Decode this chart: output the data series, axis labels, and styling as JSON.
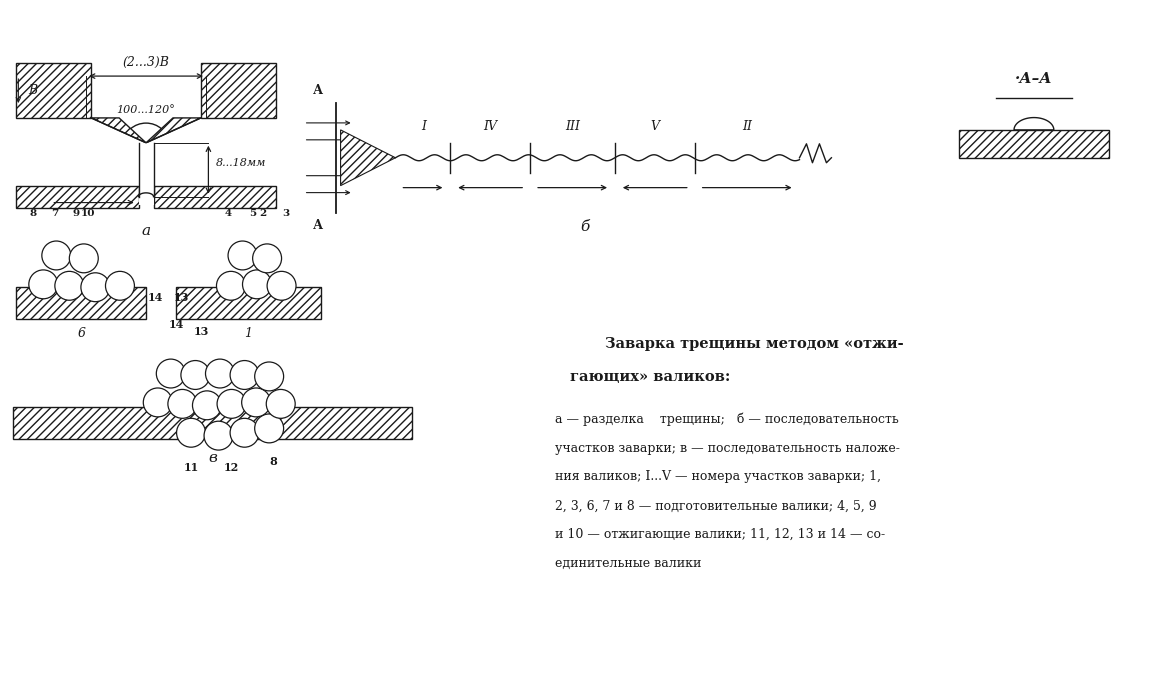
{
  "bg_color": "#ffffff",
  "line_color": "#1a1a1a",
  "fig_w": 11.68,
  "fig_h": 6.92,
  "dim_angle": "100...120°",
  "dim_width": "(2...3)В",
  "dim_depth": "8...18мм",
  "label_a": "а",
  "label_b": "б",
  "label_v": "в",
  "roman_labels": [
    "I",
    "IV",
    "III",
    "V",
    "II"
  ],
  "section_mark": "А",
  "section_label": "А–А",
  "B_label": "В",
  "title_line1": "Заварка трещины методом «отжи-",
  "title_line2": "гающих» валиков:",
  "caption_lines": [
    "а — разделка    трещины;   б — последовательность",
    "участков заварки; в — последовательность наложе-",
    "ния валиков; I...V — номера участков заварки; 1,",
    "2, 3, 6, 7 и 8 — подготовительные валики; 4, 5, 9",
    "и 10 — отжигающие валики; 11, 12, 13 и 14 — со-",
    "единительные валики"
  ]
}
